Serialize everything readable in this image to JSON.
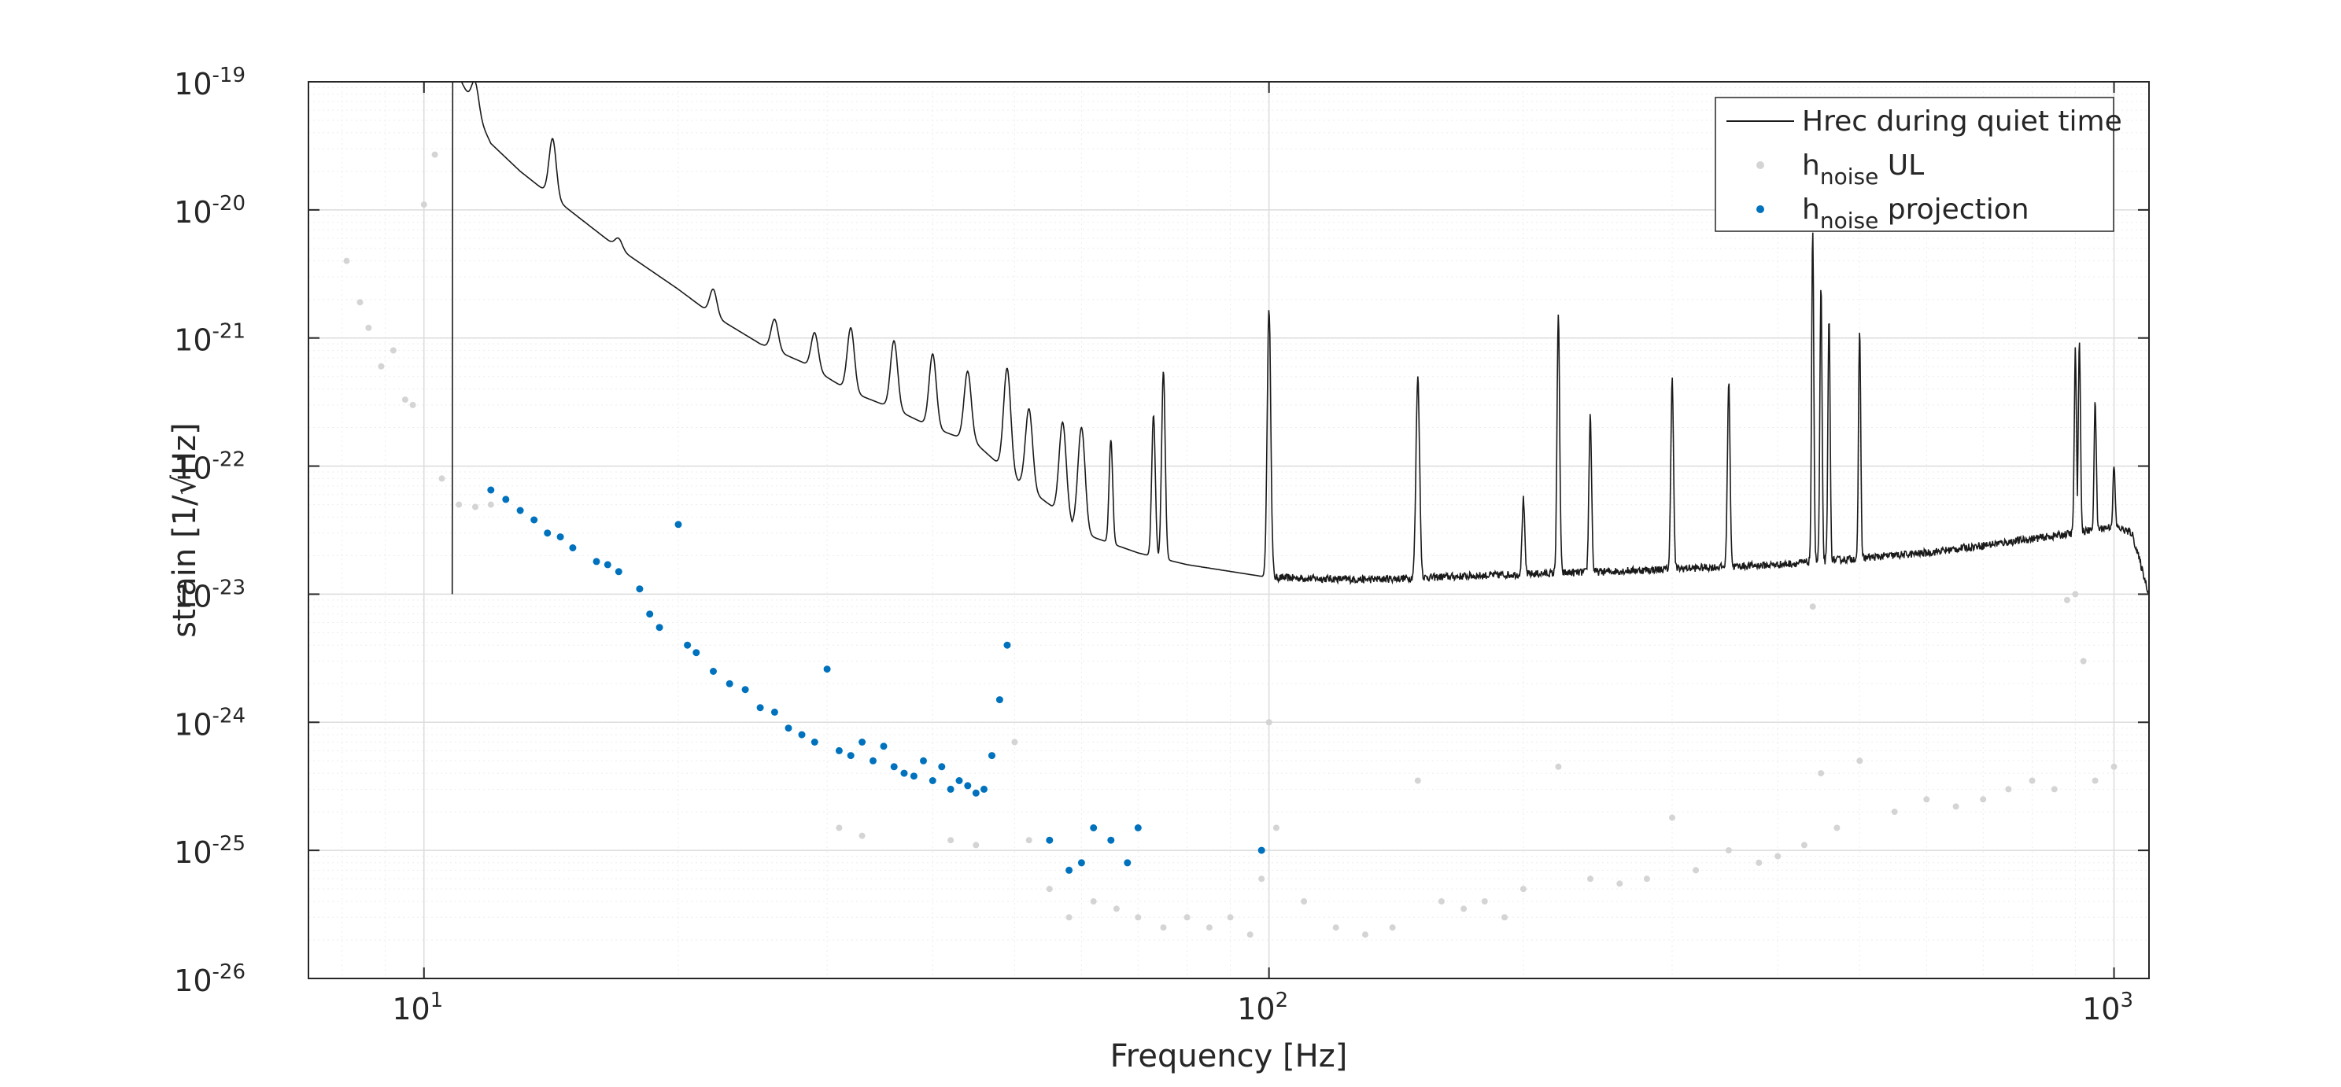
{
  "chart_data": {
    "type": "scatter",
    "xlabel": "Frequency [Hz]",
    "ylabel": "strain [1/√Hz]",
    "x_scale": "log",
    "y_scale": "log",
    "xlim": [
      7.3,
      1100
    ],
    "ylim": [
      1e-26,
      1e-19
    ],
    "grid": true,
    "legend_position": "top-right",
    "x_ticks": [
      {
        "value": 10,
        "base": "10",
        "exp": "1"
      },
      {
        "value": 100,
        "base": "10",
        "exp": "2"
      },
      {
        "value": 1000,
        "base": "10",
        "exp": "3"
      }
    ],
    "y_ticks": [
      {
        "value": 1e-19,
        "base": "10",
        "exp": "-19"
      },
      {
        "value": 1e-20,
        "base": "10",
        "exp": "-20"
      },
      {
        "value": 1e-21,
        "base": "10",
        "exp": "-21"
      },
      {
        "value": 1e-22,
        "base": "10",
        "exp": "-22"
      },
      {
        "value": 1e-23,
        "base": "10",
        "exp": "-23"
      },
      {
        "value": 1e-24,
        "base": "10",
        "exp": "-24"
      },
      {
        "value": 1e-25,
        "base": "10",
        "exp": "-25"
      },
      {
        "value": 1e-26,
        "base": "10",
        "exp": "-26"
      }
    ],
    "legend": [
      {
        "main": "Hrec during quiet time",
        "sub": "",
        "suffix": ""
      },
      {
        "main": "h",
        "sub": "noise",
        "suffix": " UL"
      },
      {
        "main": "h",
        "sub": "noise",
        "suffix": " projection"
      }
    ],
    "colors": {
      "hrec": "#1a1a1a",
      "ul": "#d4d4d4",
      "projection": "#0072bd",
      "grid": "#e6e6e6",
      "axis": "#262626"
    },
    "series": [
      {
        "name": "Hrec during quiet time",
        "kind": "line",
        "baseline": [
          [
            10.8,
            1e-19
          ],
          [
            11,
            1.1e-19
          ],
          [
            11.5,
            6e-20
          ],
          [
            12,
            3.3e-20
          ],
          [
            13,
            2e-20
          ],
          [
            15,
            9.5e-21
          ],
          [
            17,
            5e-21
          ],
          [
            20,
            2.4e-21
          ],
          [
            22,
            1.5e-21
          ],
          [
            25,
            9e-22
          ],
          [
            28,
            6.5e-22
          ],
          [
            32,
            3.8e-22
          ],
          [
            36,
            2.8e-22
          ],
          [
            40,
            2e-22
          ],
          [
            45,
            1.5e-22
          ],
          [
            50,
            8e-23
          ],
          [
            55,
            5e-23
          ],
          [
            60,
            3e-23
          ],
          [
            70,
            2.1e-23
          ],
          [
            80,
            1.7e-23
          ],
          [
            100,
            1.35e-23
          ],
          [
            130,
            1.3e-23
          ],
          [
            180,
            1.4e-23
          ],
          [
            250,
            1.5e-23
          ],
          [
            400,
            1.7e-23
          ],
          [
            600,
            2.1e-23
          ],
          [
            900,
            3e-23
          ],
          [
            1000,
            3.4e-23
          ],
          [
            1050,
            3e-23
          ],
          [
            1100,
            1e-23
          ]
        ],
        "peaks": [
          [
            11.5,
            1e-19
          ],
          [
            14.2,
            3.6e-20
          ],
          [
            17,
            6e-21
          ],
          [
            22,
            2.4e-21
          ],
          [
            26,
            1.4e-21
          ],
          [
            29,
            1.1e-21
          ],
          [
            32,
            1.2e-21
          ],
          [
            36,
            9.5e-22
          ],
          [
            40,
            7.5e-22
          ],
          [
            44,
            5.5e-22
          ],
          [
            49,
            5.8e-22
          ],
          [
            52,
            2.8e-22
          ],
          [
            57,
            2.2e-22
          ],
          [
            60,
            2e-22
          ],
          [
            65,
            1.6e-22
          ],
          [
            73,
            2.5e-22
          ],
          [
            75,
            5.5e-22
          ],
          [
            100,
            1.7e-21
          ],
          [
            150,
            5e-22
          ],
          [
            200,
            5.5e-23
          ],
          [
            220,
            1.5e-21
          ],
          [
            240,
            2.5e-22
          ],
          [
            300,
            5e-22
          ],
          [
            350,
            4.5e-22
          ],
          [
            440,
            7e-21
          ],
          [
            450,
            2.5e-21
          ],
          [
            460,
            1.5e-21
          ],
          [
            500,
            1.2e-21
          ],
          [
            900,
            8e-22
          ],
          [
            910,
            1e-21
          ],
          [
            950,
            3.2e-22
          ],
          [
            1000,
            1e-22
          ]
        ]
      },
      {
        "name": "h_noise UL",
        "kind": "scatter",
        "points": [
          [
            8.1,
            4e-21
          ],
          [
            8.4,
            1.9e-21
          ],
          [
            8.6,
            1.2e-21
          ],
          [
            8.9,
            6e-22
          ],
          [
            9.2,
            8e-22
          ],
          [
            9.5,
            3.3e-22
          ],
          [
            9.7,
            3e-22
          ],
          [
            10,
            1.1e-20
          ],
          [
            10.3,
            2.7e-20
          ],
          [
            10.5,
            8e-23
          ],
          [
            11,
            5e-23
          ],
          [
            11.5,
            4.8e-23
          ],
          [
            12,
            5e-23
          ],
          [
            31,
            1.5e-25
          ],
          [
            33,
            1.3e-25
          ],
          [
            42,
            1.2e-25
          ],
          [
            45,
            1.1e-25
          ],
          [
            50,
            7e-25
          ],
          [
            52,
            1.2e-25
          ],
          [
            55,
            5e-26
          ],
          [
            58,
            3e-26
          ],
          [
            62,
            4e-26
          ],
          [
            66,
            3.5e-26
          ],
          [
            70,
            3e-26
          ],
          [
            75,
            2.5e-26
          ],
          [
            80,
            3e-26
          ],
          [
            85,
            2.5e-26
          ],
          [
            90,
            3e-26
          ],
          [
            95,
            2.2e-26
          ],
          [
            98,
            6e-26
          ],
          [
            100,
            1e-24
          ],
          [
            102,
            1.5e-25
          ],
          [
            110,
            4e-26
          ],
          [
            120,
            2.5e-26
          ],
          [
            130,
            2.2e-26
          ],
          [
            140,
            2.5e-26
          ],
          [
            150,
            3.5e-25
          ],
          [
            160,
            4e-26
          ],
          [
            170,
            3.5e-26
          ],
          [
            180,
            4e-26
          ],
          [
            190,
            3e-26
          ],
          [
            200,
            5e-26
          ],
          [
            220,
            4.5e-25
          ],
          [
            240,
            6e-26
          ],
          [
            260,
            5.5e-26
          ],
          [
            280,
            6e-26
          ],
          [
            300,
            1.8e-25
          ],
          [
            320,
            7e-26
          ],
          [
            350,
            1e-25
          ],
          [
            380,
            8e-26
          ],
          [
            400,
            9e-26
          ],
          [
            430,
            1.1e-25
          ],
          [
            440,
            8e-24
          ],
          [
            450,
            4e-25
          ],
          [
            470,
            1.5e-25
          ],
          [
            500,
            5e-25
          ],
          [
            550,
            2e-25
          ],
          [
            600,
            2.5e-25
          ],
          [
            650,
            2.2e-25
          ],
          [
            700,
            2.5e-25
          ],
          [
            750,
            3e-25
          ],
          [
            800,
            3.5e-25
          ],
          [
            850,
            3e-25
          ],
          [
            880,
            9e-24
          ],
          [
            900,
            1e-23
          ],
          [
            920,
            3e-24
          ],
          [
            950,
            3.5e-25
          ],
          [
            1000,
            4.5e-25
          ]
        ]
      },
      {
        "name": "h_noise projection",
        "kind": "scatter",
        "points": [
          [
            12,
            6.5e-23
          ],
          [
            12.5,
            5.5e-23
          ],
          [
            13,
            4.5e-23
          ],
          [
            13.5,
            3.8e-23
          ],
          [
            14,
            3e-23
          ],
          [
            14.5,
            2.8e-23
          ],
          [
            15,
            2.3e-23
          ],
          [
            16,
            1.8e-23
          ],
          [
            16.5,
            1.7e-23
          ],
          [
            17,
            1.5e-23
          ],
          [
            18,
            1.1e-23
          ],
          [
            18.5,
            7e-24
          ],
          [
            19,
            5.5e-24
          ],
          [
            20,
            3.5e-23
          ],
          [
            20.5,
            4e-24
          ],
          [
            21,
            3.5e-24
          ],
          [
            22,
            2.5e-24
          ],
          [
            23,
            2e-24
          ],
          [
            24,
            1.8e-24
          ],
          [
            25,
            1.3e-24
          ],
          [
            26,
            1.2e-24
          ],
          [
            27,
            9e-25
          ],
          [
            28,
            8e-25
          ],
          [
            29,
            7e-25
          ],
          [
            30,
            2.6e-24
          ],
          [
            31,
            6e-25
          ],
          [
            32,
            5.5e-25
          ],
          [
            33,
            7e-25
          ],
          [
            34,
            5e-25
          ],
          [
            35,
            6.5e-25
          ],
          [
            36,
            4.5e-25
          ],
          [
            37,
            4e-25
          ],
          [
            38,
            3.8e-25
          ],
          [
            39,
            5e-25
          ],
          [
            40,
            3.5e-25
          ],
          [
            41,
            4.5e-25
          ],
          [
            42,
            3e-25
          ],
          [
            43,
            3.5e-25
          ],
          [
            44,
            3.2e-25
          ],
          [
            45,
            2.8e-25
          ],
          [
            46,
            3e-25
          ],
          [
            47,
            5.5e-25
          ],
          [
            48,
            1.5e-24
          ],
          [
            49,
            4e-24
          ],
          [
            55,
            1.2e-25
          ],
          [
            58,
            7e-26
          ],
          [
            60,
            8e-26
          ],
          [
            62,
            1.5e-25
          ],
          [
            65,
            1.2e-25
          ],
          [
            68,
            8e-26
          ],
          [
            70,
            1.5e-25
          ],
          [
            98,
            1e-25
          ]
        ]
      }
    ]
  }
}
